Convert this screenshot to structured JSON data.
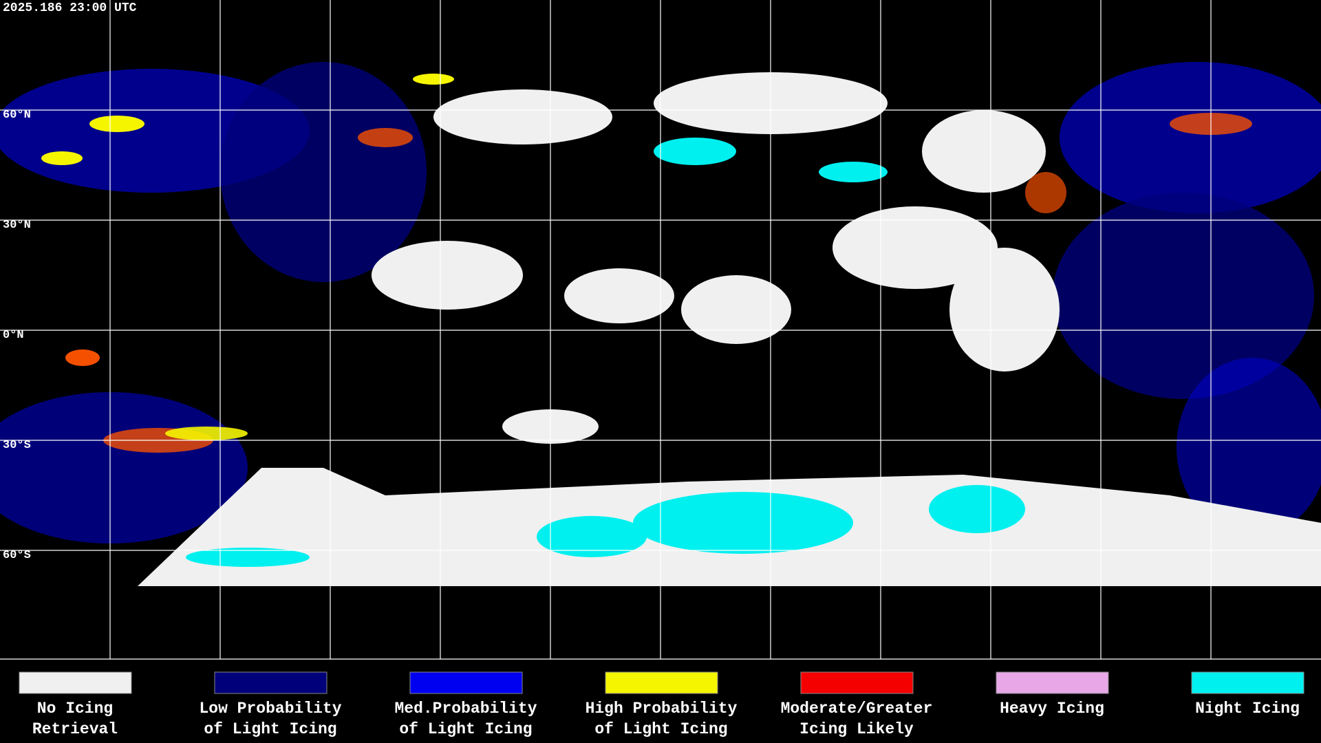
{
  "header": {
    "timestamp": "2025.186 23:00 UTC"
  },
  "latitude_labels": [
    "60°N",
    "30°N",
    "0°N",
    "30°S",
    "60°S"
  ],
  "legend": [
    {
      "lines": [
        "No Icing",
        "Retrieval"
      ],
      "color": "#f0f0f0"
    },
    {
      "lines": [
        "Low Probability",
        "of Light Icing"
      ],
      "color": "#00007a"
    },
    {
      "lines": [
        "Med.Probability",
        "of Light Icing"
      ],
      "color": "#0000f0"
    },
    {
      "lines": [
        "High Probability",
        "of Light Icing"
      ],
      "color": "#f5f500"
    },
    {
      "lines": [
        "Moderate/Greater",
        "Icing Likely"
      ],
      "color": "#f50000"
    },
    {
      "lines": [
        "Heavy Icing"
      ],
      "color": "#e8a8e8"
    },
    {
      "lines": [
        "Night Icing"
      ],
      "color": "#00f0f0"
    }
  ]
}
